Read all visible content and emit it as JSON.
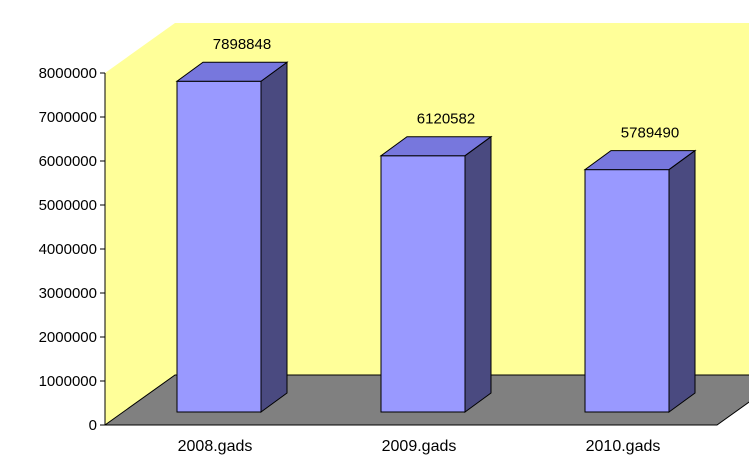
{
  "chart_data": {
    "type": "bar",
    "categories": [
      "2008.gads",
      "2009.gads",
      "2010.gads"
    ],
    "values": [
      7898848,
      6120582,
      5789490
    ],
    "ylim": [
      0,
      8000000
    ],
    "yticks": [
      "0",
      "1000000",
      "2000000",
      "3000000",
      "4000000",
      "5000000",
      "6000000",
      "7000000",
      "8000000"
    ],
    "ytick_values": [
      0,
      1000000,
      2000000,
      3000000,
      4000000,
      5000000,
      6000000,
      7000000,
      8000000
    ],
    "value_labels": [
      "7898848",
      "6120582",
      "5789490"
    ],
    "legend": "none",
    "grid": false,
    "three_d": true,
    "colors": {
      "wall": "#ffff99",
      "floor": "#808080",
      "bar_front": "#9999ff",
      "bar_top": "#7777dd",
      "bar_side": "#4a4a80",
      "outline": "#000000"
    }
  }
}
